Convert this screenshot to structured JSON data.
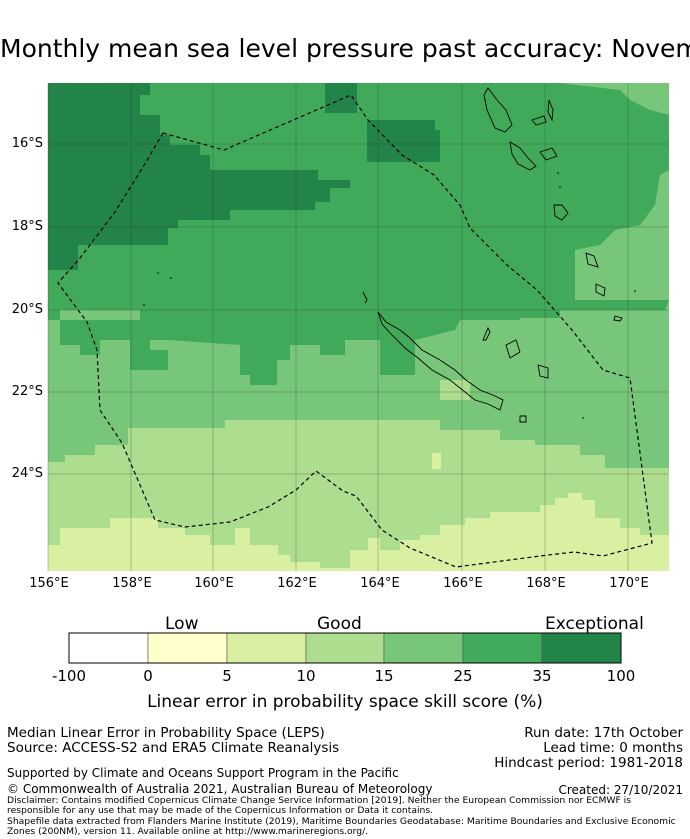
{
  "title": "Monthly mean sea level pressure past accuracy: November",
  "map": {
    "lat_labels": [
      "16°S",
      "18°S",
      "20°S",
      "22°S",
      "24°S"
    ],
    "lon_labels": [
      "156°E",
      "158°E",
      "160°E",
      "162°E",
      "164°E",
      "166°E",
      "168°E",
      "170°E"
    ],
    "lon_range": [
      156,
      171
    ],
    "lat_range": [
      -14.5,
      -26.2
    ],
    "colors": {
      "exceptional": "#23844a",
      "good_high": "#41aa5a",
      "good_mid": "#78c679",
      "good_low": "#addd8e",
      "low_high": "#d9f0a3",
      "low_low": "#ffffcc"
    }
  },
  "colorbar": {
    "category_labels": {
      "low": "Low",
      "good": "Good",
      "exceptional": "Exceptional"
    },
    "bins": [
      {
        "color": "#ffffff"
      },
      {
        "color": "#ffffcc"
      },
      {
        "color": "#d9f0a3"
      },
      {
        "color": "#addd8e"
      },
      {
        "color": "#78c679"
      },
      {
        "color": "#41aa5a"
      },
      {
        "color": "#23844a"
      }
    ],
    "ticks": [
      "-100",
      "0",
      "5",
      "10",
      "15",
      "25",
      "35",
      "100"
    ],
    "label": "Linear error in probability space skill score (%)"
  },
  "info": {
    "line1": "Median Linear Error in Probability Space (LEPS)",
    "line2": "Source: ACCESS-S2 and ERA5 Climate Reanalysis",
    "run_date": "Run date: 17th October",
    "lead_time": "Lead time: 0 months",
    "hindcast": "Hindcast period: 1981-2018",
    "support": "Supported by Climate and Oceans Support Program in the Pacific",
    "copyright": "© Commonwealth of Australia 2021, Australian Bureau of Meteorology",
    "created": "Created: 27/10/2021",
    "disclaimer1": "Disclaimer: Contains modified Copernicus Climate Change Service Information [2019]. Neither the European Commission nor ECMWF is responsible for any use that may be made of the Copernicus Information or Data it contains.",
    "disclaimer2": "Shapefile data extracted from Flanders Marine Institute (2019), Maritime Boundaries Geodatabase: Maritime Boundaries and Exclusive Economic Zones (200NM), version 11. Available online at http://www.marineregions.org/."
  }
}
